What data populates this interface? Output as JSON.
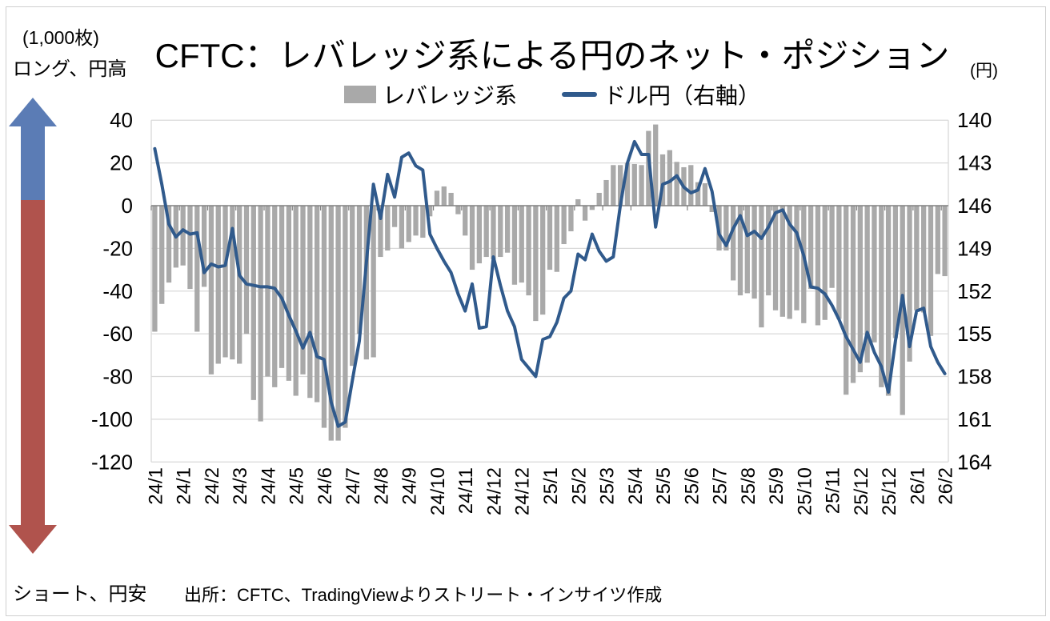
{
  "frame": {
    "title": "CFTC：レバレッジ系による円のネット・ポジション",
    "unit_left": "(1,000枚)",
    "long_label": "ロング、円高",
    "short_label": "ショート、円安",
    "unit_right": "(円)",
    "source": "出所：CFTC、TradingViewよりストリート・インサイツ作成"
  },
  "legend": {
    "items": [
      {
        "label": "レバレッジ系",
        "type": "bar",
        "color": "#a9a9a9"
      },
      {
        "label": "ドル円（右軸）",
        "type": "line",
        "color": "#305a8c"
      }
    ]
  },
  "colors": {
    "bar": "#a9a9a9",
    "line": "#305a8c",
    "long_arrow_blue": "#5b7cb5",
    "short_arrow_red": "#b0534d",
    "gridline": "#d9d9d9",
    "zero_line": "#808080",
    "text": "#000000"
  },
  "chart_data": {
    "type": "bar+line",
    "title": "CFTC：レバレッジ系による円のネット・ポジション",
    "x_label_every": 4,
    "x_labels": [
      "24/1",
      "24/1",
      "24/2",
      "24/3",
      "24/4",
      "24/5",
      "24/6",
      "24/7",
      "24/8",
      "24/9",
      "24/10",
      "24/11",
      "24/12",
      "24/12",
      "25/1",
      "25/2",
      "25/3",
      "25/4",
      "25/5",
      "25/6",
      "25/7",
      "25/8",
      "25/9",
      "25/10",
      "25/11",
      "25/12",
      "25/12",
      "26/1",
      "26/2"
    ],
    "left_axis": {
      "title": "(1,000枚)",
      "ticks": [
        40,
        20,
        0,
        -20,
        -40,
        -60,
        -80,
        -100,
        -120
      ],
      "range": [
        -120,
        40
      ],
      "grid": true
    },
    "right_axis": {
      "title": "(円)",
      "ticks": [
        140,
        143,
        146,
        149,
        152,
        155,
        158,
        161,
        164
      ],
      "range": [
        140,
        164
      ],
      "inverted": true
    },
    "series": [
      {
        "name": "レバレッジ系",
        "type": "bar",
        "axis": "left",
        "color": "#a9a9a9",
        "values": [
          -59,
          -46,
          -36,
          -29,
          -28,
          -39,
          -59,
          -38,
          -79,
          -74,
          -71,
          -72,
          -74,
          -60,
          -91,
          -101,
          -80,
          -85,
          -76,
          -82,
          -89,
          -79,
          -90,
          -92,
          -104,
          -110,
          -110,
          -104,
          -75,
          -60,
          -72,
          -71,
          -24,
          -21,
          -10,
          -20,
          -17,
          -14,
          -15,
          -5,
          7,
          9,
          6,
          -4,
          -14,
          -30,
          -27,
          -24,
          -25,
          -24,
          -22,
          -37,
          -36,
          -42,
          -54,
          -51,
          -30,
          -31,
          -18,
          -12,
          3,
          -7,
          -2,
          6,
          12,
          19,
          19,
          20,
          19.5,
          19,
          35,
          38,
          24,
          26,
          20.5,
          18,
          19,
          11,
          10.5,
          -3,
          -21,
          -21,
          -35,
          -42,
          -41,
          -43.5,
          -57,
          -42,
          -49,
          -52,
          -53,
          -49,
          -55,
          -39,
          -56,
          -53.5,
          -38.5,
          -53,
          -88.5,
          -83,
          -78,
          -73.5,
          -64,
          -85,
          -89,
          -62,
          -98,
          -73,
          -49,
          -50,
          -61,
          -32,
          -33
        ]
      },
      {
        "name": "ドル円（右軸）",
        "type": "line",
        "axis": "right",
        "color": "#305a8c",
        "values": [
          142.0,
          144.5,
          147.3,
          148.2,
          147.7,
          148.0,
          147.9,
          150.7,
          150.1,
          150.3,
          150.2,
          147.6,
          150.9,
          151.5,
          151.6,
          151.7,
          151.7,
          151.8,
          152.5,
          153.7,
          154.8,
          156.0,
          154.9,
          156.6,
          156.8,
          159.8,
          161.5,
          161.2,
          158.3,
          155.5,
          150.0,
          144.5,
          146.9,
          143.8,
          145.4,
          142.6,
          142.3,
          143.2,
          143.5,
          148.0,
          149.0,
          149.9,
          150.7,
          152.2,
          153.4,
          151.5,
          154.6,
          154.5,
          149.6,
          151.6,
          153.4,
          154.5,
          156.8,
          157.4,
          158.0,
          155.4,
          155.2,
          154.2,
          152.5,
          152.0,
          149.4,
          149.8,
          148.0,
          149.2,
          149.9,
          149.6,
          146.0,
          143.0,
          141.5,
          142.4,
          142.4,
          147.5,
          144.5,
          144.3,
          143.9,
          144.7,
          145.1,
          144.9,
          143.4,
          145.0,
          148.0,
          148.8,
          147.6,
          146.7,
          148.1,
          147.8,
          148.3,
          147.5,
          146.5,
          146.3,
          147.3,
          147.9,
          149.5,
          151.7,
          151.8,
          152.2,
          153.0,
          154.0,
          155.2,
          156.1,
          157.0,
          154.9,
          156.3,
          157.3,
          159.1,
          155.5,
          152.3,
          155.9,
          153.4,
          153.2,
          155.9,
          157.0,
          157.8
        ]
      }
    ]
  }
}
